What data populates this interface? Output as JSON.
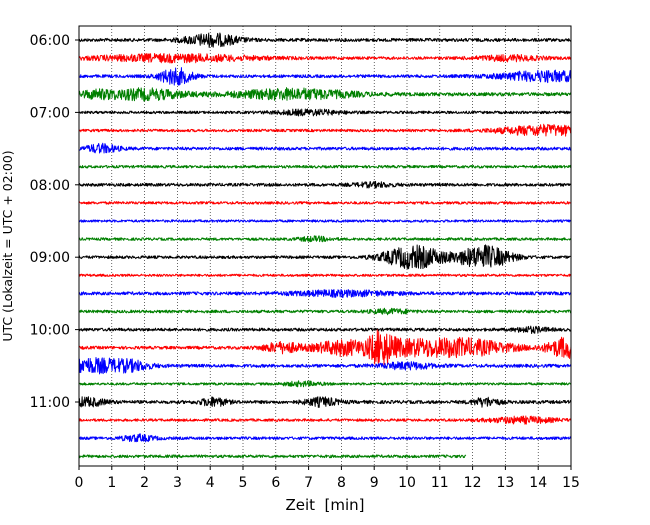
{
  "chart_data": {
    "type": "line",
    "title": "",
    "xlabel": "Zeit  [min]",
    "ylabel": "UTC (Lokalzeit = UTC + 02:00)",
    "xlim": [
      0,
      15
    ],
    "x_ticks": [
      0,
      1,
      2,
      3,
      4,
      5,
      6,
      7,
      8,
      9,
      10,
      11,
      12,
      13,
      14,
      15
    ],
    "x_tick_labels": [
      "0",
      "1",
      "2",
      "3",
      "4",
      "5",
      "6",
      "7",
      "8",
      "9",
      "10",
      "11",
      "12",
      "13",
      "14",
      "15"
    ],
    "y_ticks": [
      "06:00",
      "07:00",
      "08:00",
      "09:00",
      "10:00",
      "11:00"
    ],
    "grid": "vertical dotted",
    "trace_interval_min": 15,
    "trace_colors": [
      "#000000",
      "#ff0000",
      "#0000ff",
      "#008000"
    ],
    "series": [
      {
        "start": "06:00",
        "color": "#000000",
        "end_min": 15,
        "noise": 1.6,
        "events": [
          [
            4.05,
            6,
            0.8
          ]
        ]
      },
      {
        "start": "06:15",
        "color": "#ff0000",
        "end_min": 15,
        "noise": 1.4,
        "events": [
          [
            2.9,
            3.5,
            2.5
          ],
          [
            13.1,
            2.5,
            1.0
          ]
        ]
      },
      {
        "start": "06:30",
        "color": "#0000ff",
        "end_min": 15,
        "noise": 1.5,
        "events": [
          [
            2.95,
            8,
            0.5
          ],
          [
            14.3,
            5,
            1.5
          ]
        ]
      },
      {
        "start": "06:45",
        "color": "#008000",
        "end_min": 15,
        "noise": 1.7,
        "events": [
          [
            0.5,
            3,
            0.6
          ],
          [
            2.0,
            5,
            1.2
          ],
          [
            6.5,
            5,
            1.8
          ]
        ]
      },
      {
        "start": "07:00",
        "color": "#000000",
        "end_min": 15,
        "noise": 1.3,
        "events": [
          [
            7.0,
            2.5,
            1.0
          ]
        ]
      },
      {
        "start": "07:15",
        "color": "#ff0000",
        "end_min": 15,
        "noise": 1.3,
        "events": [
          [
            14.3,
            5,
            1.5
          ]
        ]
      },
      {
        "start": "07:30",
        "color": "#0000ff",
        "end_min": 15,
        "noise": 1.5,
        "events": [
          [
            0.7,
            4,
            0.5
          ]
        ]
      },
      {
        "start": "07:45",
        "color": "#008000",
        "end_min": 15,
        "noise": 1.3,
        "events": []
      },
      {
        "start": "08:00",
        "color": "#000000",
        "end_min": 15,
        "noise": 1.5,
        "events": [
          [
            9.0,
            2,
            0.6
          ]
        ]
      },
      {
        "start": "08:15",
        "color": "#ff0000",
        "end_min": 15,
        "noise": 1.3,
        "events": []
      },
      {
        "start": "08:30",
        "color": "#0000ff",
        "end_min": 15,
        "noise": 1.2,
        "events": []
      },
      {
        "start": "08:45",
        "color": "#008000",
        "end_min": 15,
        "noise": 1.3,
        "events": [
          [
            7.2,
            2,
            0.5
          ]
        ]
      },
      {
        "start": "09:00",
        "color": "#000000",
        "end_min": 15,
        "noise": 1.4,
        "events": [
          [
            10.2,
            11,
            0.9
          ],
          [
            12.35,
            11,
            0.8
          ]
        ]
      },
      {
        "start": "09:15",
        "color": "#ff0000",
        "end_min": 15,
        "noise": 1.2,
        "events": []
      },
      {
        "start": "09:30",
        "color": "#0000ff",
        "end_min": 15,
        "noise": 1.6,
        "events": [
          [
            8.0,
            2.5,
            1.5
          ]
        ]
      },
      {
        "start": "09:45",
        "color": "#008000",
        "end_min": 15,
        "noise": 1.4,
        "events": [
          [
            9.5,
            2,
            0.6
          ]
        ]
      },
      {
        "start": "10:00",
        "color": "#000000",
        "end_min": 15,
        "noise": 1.5,
        "events": [
          [
            13.8,
            2.5,
            0.5
          ]
        ]
      },
      {
        "start": "10:15",
        "color": "#ff0000",
        "end_min": 15,
        "noise": 1.5,
        "events": [
          [
            6.2,
            5,
            0.6
          ],
          [
            8.0,
            7,
            0.8
          ],
          [
            9.2,
            12,
            0.35
          ],
          [
            9.6,
            5,
            1.0
          ],
          [
            11.5,
            9,
            1.6
          ],
          [
            14.9,
            10,
            0.6
          ]
        ]
      },
      {
        "start": "10:30",
        "color": "#0000ff",
        "end_min": 15,
        "noise": 1.6,
        "events": [
          [
            0.35,
            7,
            1.0
          ],
          [
            1.6,
            4,
            0.6
          ],
          [
            10.0,
            3,
            0.8
          ]
        ]
      },
      {
        "start": "10:45",
        "color": "#008000",
        "end_min": 15,
        "noise": 1.2,
        "events": [
          [
            6.8,
            2,
            0.6
          ]
        ]
      },
      {
        "start": "11:00",
        "color": "#000000",
        "end_min": 15,
        "noise": 1.6,
        "events": [
          [
            0.2,
            4,
            0.6
          ],
          [
            4.1,
            4,
            0.4
          ],
          [
            7.4,
            4,
            0.5
          ],
          [
            12.4,
            4,
            0.4
          ]
        ]
      },
      {
        "start": "11:15",
        "color": "#ff0000",
        "end_min": 15,
        "noise": 1.3,
        "events": [
          [
            13.5,
            3,
            1.0
          ]
        ]
      },
      {
        "start": "11:30",
        "color": "#0000ff",
        "end_min": 15,
        "noise": 1.4,
        "events": [
          [
            1.8,
            3,
            0.5
          ]
        ]
      },
      {
        "start": "11:45",
        "color": "#008000",
        "end_min": 11.8,
        "noise": 1.4,
        "events": []
      }
    ]
  }
}
